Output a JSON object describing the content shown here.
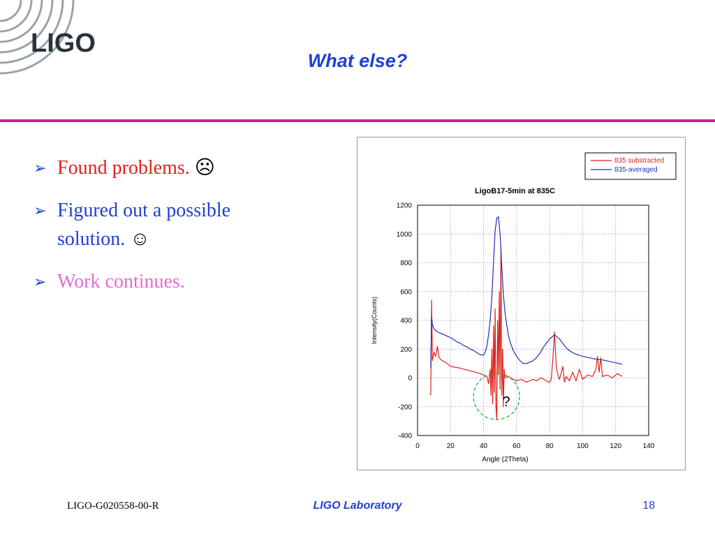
{
  "logo": {
    "text": "LIGO"
  },
  "slide": {
    "title": "What else?"
  },
  "bullets": [
    {
      "text": "Found problems. ",
      "emoji": "☹",
      "color": "#e0201b"
    },
    {
      "text": "Figured out a possible solution. ",
      "emoji": "☺",
      "color": "#1f3fd6"
    },
    {
      "text": "Work continues.",
      "emoji": "",
      "color": "#e56ad0"
    }
  ],
  "footer": {
    "doc_id": "LIGO-G020558-00-R",
    "lab": "LIGO Laboratory",
    "page": "18"
  },
  "colors": {
    "accent": "#1f3fd6",
    "divider": "#cc1f8f",
    "series_red": "#e0201b",
    "series_blue": "#1f2fb5",
    "annotation": "#22b14c"
  },
  "chart_data": {
    "type": "line",
    "title": "LigoB17-5min at 835C",
    "xlabel": "Angle (2Theta)",
    "ylabel": "Intensity(Counts)",
    "xlim": [
      0,
      140
    ],
    "ylim": [
      -400,
      1200
    ],
    "x_ticks": [
      0,
      20,
      40,
      60,
      80,
      100,
      120,
      140
    ],
    "y_ticks": [
      -400,
      -200,
      0,
      200,
      400,
      600,
      800,
      1000,
      1200
    ],
    "grid": true,
    "legend_position": "top-right",
    "annotation": {
      "text": "?",
      "x": 47,
      "y": -90
    },
    "series": [
      {
        "name": "835 substracted",
        "color": "#e0201b",
        "points": [
          [
            8,
            -120
          ],
          [
            8.5,
            540
          ],
          [
            9,
            120
          ],
          [
            10,
            180
          ],
          [
            11,
            150
          ],
          [
            12,
            220
          ],
          [
            13,
            140
          ],
          [
            15,
            120
          ],
          [
            18,
            100
          ],
          [
            20,
            80
          ],
          [
            25,
            70
          ],
          [
            30,
            55
          ],
          [
            35,
            40
          ],
          [
            38,
            30
          ],
          [
            40,
            20
          ],
          [
            42,
            10
          ],
          [
            43,
            -40
          ],
          [
            44,
            60
          ],
          [
            44.5,
            -120
          ],
          [
            45,
            200
          ],
          [
            45.5,
            -180
          ],
          [
            46,
            360
          ],
          [
            46.5,
            -100
          ],
          [
            47,
            480
          ],
          [
            47.5,
            -200
          ],
          [
            48,
            -290
          ],
          [
            48.5,
            400
          ],
          [
            49,
            20
          ],
          [
            49.5,
            600
          ],
          [
            50,
            -80
          ],
          [
            50.5,
            900
          ],
          [
            51,
            -120
          ],
          [
            51.5,
            200
          ],
          [
            52,
            -200
          ],
          [
            52.5,
            60
          ],
          [
            53,
            0
          ],
          [
            55,
            10
          ],
          [
            58,
            -10
          ],
          [
            60,
            -20
          ],
          [
            63,
            -10
          ],
          [
            66,
            -30
          ],
          [
            68,
            -20
          ],
          [
            70,
            -10
          ],
          [
            72,
            -20
          ],
          [
            75,
            0
          ],
          [
            78,
            -20
          ],
          [
            80,
            -30
          ],
          [
            81,
            -10
          ],
          [
            82,
            140
          ],
          [
            83,
            320
          ],
          [
            84,
            80
          ],
          [
            85,
            20
          ],
          [
            86,
            -10
          ],
          [
            88,
            80
          ],
          [
            89,
            -30
          ],
          [
            90,
            10
          ],
          [
            92,
            -20
          ],
          [
            94,
            40
          ],
          [
            96,
            -20
          ],
          [
            98,
            60
          ],
          [
            100,
            -10
          ],
          [
            103,
            20
          ],
          [
            106,
            10
          ],
          [
            108,
            60
          ],
          [
            109,
            150
          ],
          [
            110,
            40
          ],
          [
            111,
            140
          ],
          [
            112,
            10
          ],
          [
            115,
            20
          ],
          [
            118,
            0
          ],
          [
            121,
            30
          ],
          [
            124,
            10
          ]
        ]
      },
      {
        "name": "835-averaged",
        "color": "#1f2fb5",
        "points": [
          [
            8,
            70
          ],
          [
            8.5,
            420
          ],
          [
            9,
            370
          ],
          [
            10,
            340
          ],
          [
            12,
            320
          ],
          [
            14,
            310
          ],
          [
            16,
            300
          ],
          [
            18,
            290
          ],
          [
            20,
            280
          ],
          [
            22,
            265
          ],
          [
            24,
            250
          ],
          [
            26,
            240
          ],
          [
            28,
            225
          ],
          [
            30,
            215
          ],
          [
            32,
            200
          ],
          [
            34,
            190
          ],
          [
            36,
            175
          ],
          [
            38,
            160
          ],
          [
            40,
            160
          ],
          [
            41,
            180
          ],
          [
            42,
            220
          ],
          [
            43,
            300
          ],
          [
            44,
            400
          ],
          [
            45,
            560
          ],
          [
            46,
            800
          ],
          [
            47,
            1020
          ],
          [
            48,
            1110
          ],
          [
            49,
            1120
          ],
          [
            50,
            1000
          ],
          [
            51,
            780
          ],
          [
            52,
            580
          ],
          [
            53,
            450
          ],
          [
            54,
            370
          ],
          [
            55,
            300
          ],
          [
            56,
            250
          ],
          [
            58,
            190
          ],
          [
            60,
            150
          ],
          [
            62,
            120
          ],
          [
            64,
            100
          ],
          [
            66,
            100
          ],
          [
            68,
            110
          ],
          [
            70,
            120
          ],
          [
            72,
            140
          ],
          [
            74,
            170
          ],
          [
            76,
            210
          ],
          [
            78,
            240
          ],
          [
            80,
            270
          ],
          [
            82,
            290
          ],
          [
            83,
            300
          ],
          [
            84,
            290
          ],
          [
            86,
            270
          ],
          [
            88,
            240
          ],
          [
            90,
            210
          ],
          [
            92,
            190
          ],
          [
            94,
            175
          ],
          [
            96,
            165
          ],
          [
            100,
            150
          ],
          [
            104,
            140
          ],
          [
            108,
            130
          ],
          [
            112,
            125
          ],
          [
            116,
            115
          ],
          [
            120,
            105
          ],
          [
            124,
            95
          ]
        ]
      }
    ]
  }
}
